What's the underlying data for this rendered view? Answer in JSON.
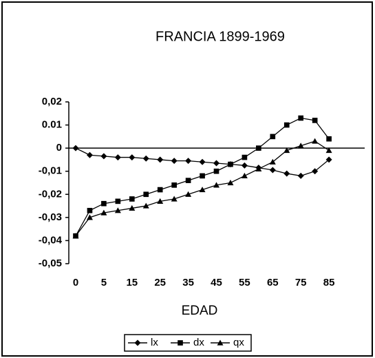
{
  "chart_data": {
    "type": "line",
    "title": "FRANCIA 1899-1969",
    "xlabel": "EDAD",
    "categories": [
      "0",
      null,
      "5",
      null,
      "15",
      null,
      "25",
      null,
      "35",
      null,
      "45",
      null,
      "55",
      null,
      "65",
      null,
      "75",
      null,
      "85"
    ],
    "series": [
      {
        "name": "lx",
        "marker": "diamond",
        "color": "#000000",
        "values": [
          0,
          -0.003,
          -0.0035,
          -0.004,
          -0.004,
          -0.0045,
          -0.005,
          -0.0055,
          -0.0055,
          -0.006,
          -0.0065,
          -0.007,
          -0.0075,
          -0.0085,
          -0.0095,
          -0.011,
          -0.012,
          -0.01,
          -0.005
        ]
      },
      {
        "name": "dx",
        "marker": "square",
        "color": "#000000",
        "values": [
          -0.038,
          -0.027,
          -0.024,
          -0.023,
          -0.022,
          -0.02,
          -0.018,
          -0.016,
          -0.014,
          -0.012,
          -0.01,
          -0.007,
          -0.004,
          0,
          0.005,
          0.01,
          0.013,
          0.012,
          0.004
        ]
      },
      {
        "name": "qx",
        "marker": "triangle",
        "color": "#000000",
        "values": [
          -0.038,
          -0.03,
          -0.028,
          -0.027,
          -0.026,
          -0.025,
          -0.023,
          -0.022,
          -0.02,
          -0.018,
          -0.016,
          -0.015,
          -0.012,
          -0.009,
          -0.006,
          -0.001,
          0.001,
          0.003,
          -0.001
        ]
      }
    ],
    "ylim": [
      -0.05,
      0.02
    ],
    "yticks": [
      {
        "value": 0.02,
        "label": "0,02"
      },
      {
        "value": 0.01,
        "label": "0.01"
      },
      0,
      {
        "value": -0.01,
        "label": "-0,01"
      },
      {
        "value": -0.02,
        "label": "-0,02"
      },
      {
        "value": -0.03,
        "label": "-0,03"
      },
      {
        "value": -0.04,
        "label": "-0,04"
      },
      {
        "value": -0.05,
        "label": "-0,05"
      }
    ],
    "legend": "bottom"
  }
}
